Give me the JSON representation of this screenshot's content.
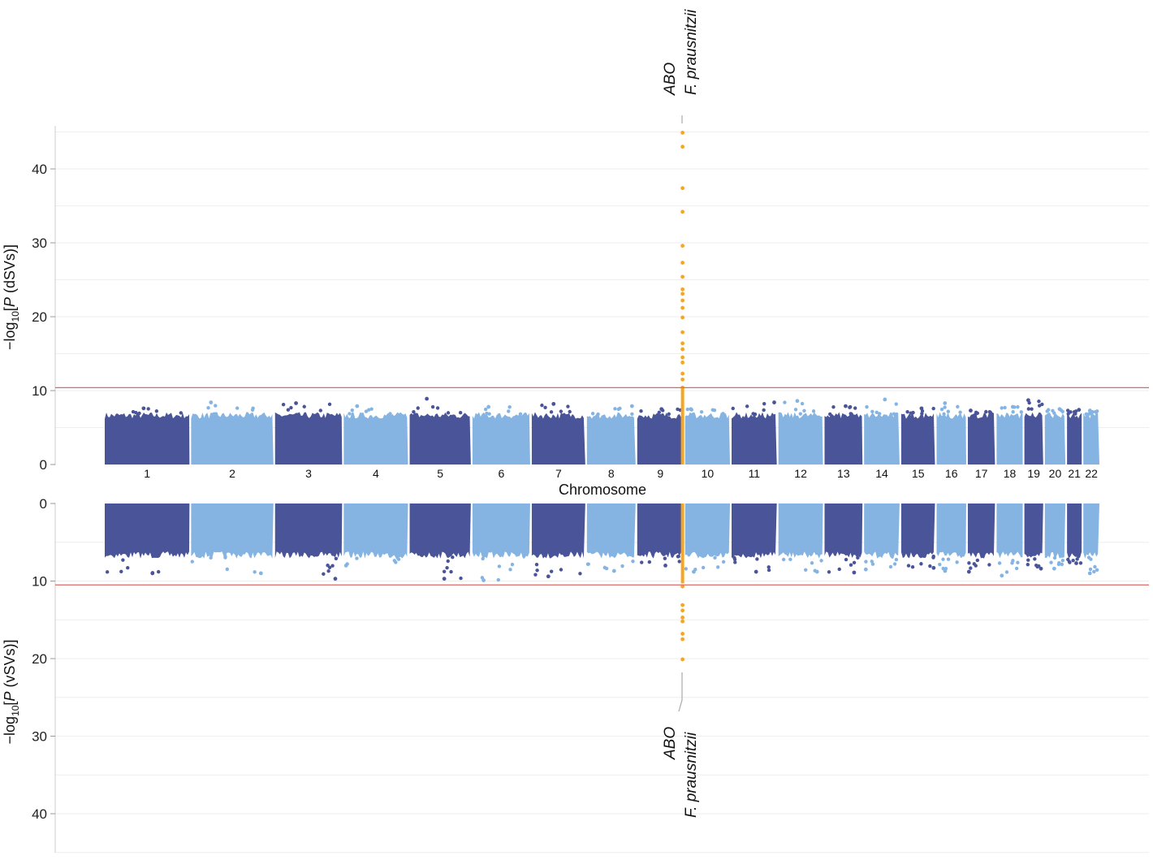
{
  "chart_data": {
    "type": "scatter",
    "subtype": "miami",
    "xlabel": "Chromosome",
    "top": {
      "ylabel_parts": [
        "−log",
        "10",
        "[",
        "P",
        " (dSVs)]"
      ],
      "ylim": [
        0,
        45
      ],
      "yticks": [
        0,
        10,
        20,
        30,
        40
      ],
      "threshold": 10.4
    },
    "bottom": {
      "ylabel_parts": [
        "−log",
        "10",
        "[",
        "P",
        " (vSVs)]"
      ],
      "ylim": [
        0,
        45
      ],
      "yticks": [
        0,
        10,
        20,
        30,
        40
      ],
      "threshold": 10.5,
      "inverted": true
    },
    "chromosomes": [
      "1",
      "2",
      "3",
      "4",
      "5",
      "6",
      "7",
      "8",
      "9",
      "10",
      "11",
      "12",
      "13",
      "14",
      "15",
      "16",
      "17",
      "18",
      "19",
      "20",
      "21",
      "22"
    ],
    "chrom_length_mb": [
      249,
      242,
      198,
      190,
      181,
      171,
      159,
      145,
      138,
      134,
      135,
      133,
      114,
      107,
      102,
      90,
      83,
      80,
      59,
      64,
      47,
      51
    ],
    "top_max": [
      7.6,
      8.4,
      8.3,
      7.9,
      8.9,
      7.8,
      8.2,
      7.9,
      7.5,
      7.5,
      8.4,
      8.6,
      7.9,
      8.8,
      7.6,
      8.3,
      7.3,
      7.8,
      8.7,
      7.5,
      7.4,
      7.3
    ],
    "bottom_max": [
      9.0,
      9.0,
      9.7,
      8.0,
      9.7,
      9.9,
      9.4,
      8.7,
      8.0,
      8.8,
      8.8,
      8.8,
      8.9,
      8.5,
      8.3,
      8.7,
      8.8,
      9.3,
      8.4,
      8.4,
      7.7,
      9.0
    ],
    "highlight": {
      "chromosome": "9",
      "position_mb": 133,
      "labels": [
        "ABO",
        "F. prausnitzii"
      ],
      "top_values": [
        44.9,
        43.0,
        37.4,
        34.2,
        29.6,
        27.3,
        25.4,
        23.7,
        23.1,
        22.2,
        21.2,
        19.9,
        17.9,
        16.4,
        15.6,
        14.5,
        13.8,
        12.3,
        11.5,
        10.4
      ],
      "bottom_values": [
        10.7,
        13.1,
        13.8,
        14.7,
        15.2,
        16.8,
        17.5,
        20.1
      ]
    },
    "colors": {
      "dark": "#4a5499",
      "light": "#85b4e3",
      "highlight": "#f5a623",
      "threshold": "#e06666",
      "grid": "#eeeeee"
    }
  }
}
